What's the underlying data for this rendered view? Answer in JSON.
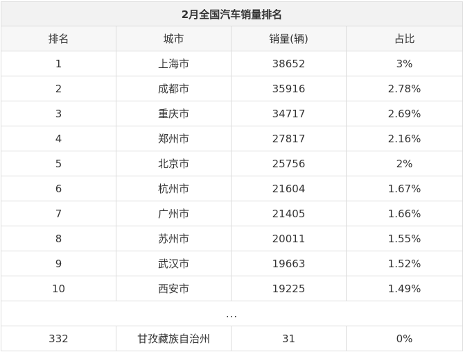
{
  "table": {
    "title": "2月全国汽车销量排名",
    "headers": [
      "排名",
      "城市",
      "销量(辆)",
      "占比"
    ],
    "rows": [
      [
        "1",
        "上海市",
        "38652",
        "3%"
      ],
      [
        "2",
        "成都市",
        "35916",
        "2.78%"
      ],
      [
        "3",
        "重庆市",
        "34717",
        "2.69%"
      ],
      [
        "4",
        "郑州市",
        "27817",
        "2.16%"
      ],
      [
        "5",
        "北京市",
        "25756",
        "2%"
      ],
      [
        "6",
        "杭州市",
        "21604",
        "1.67%"
      ],
      [
        "7",
        "广州市",
        "21405",
        "1.66%"
      ],
      [
        "8",
        "苏州市",
        "20011",
        "1.55%"
      ],
      [
        "9",
        "武汉市",
        "19663",
        "1.52%"
      ],
      [
        "10",
        "西安市",
        "19225",
        "1.49%"
      ]
    ],
    "ellipsis": "...",
    "last_row": [
      "332",
      "甘孜藏族自治州",
      "31",
      "0%"
    ]
  }
}
